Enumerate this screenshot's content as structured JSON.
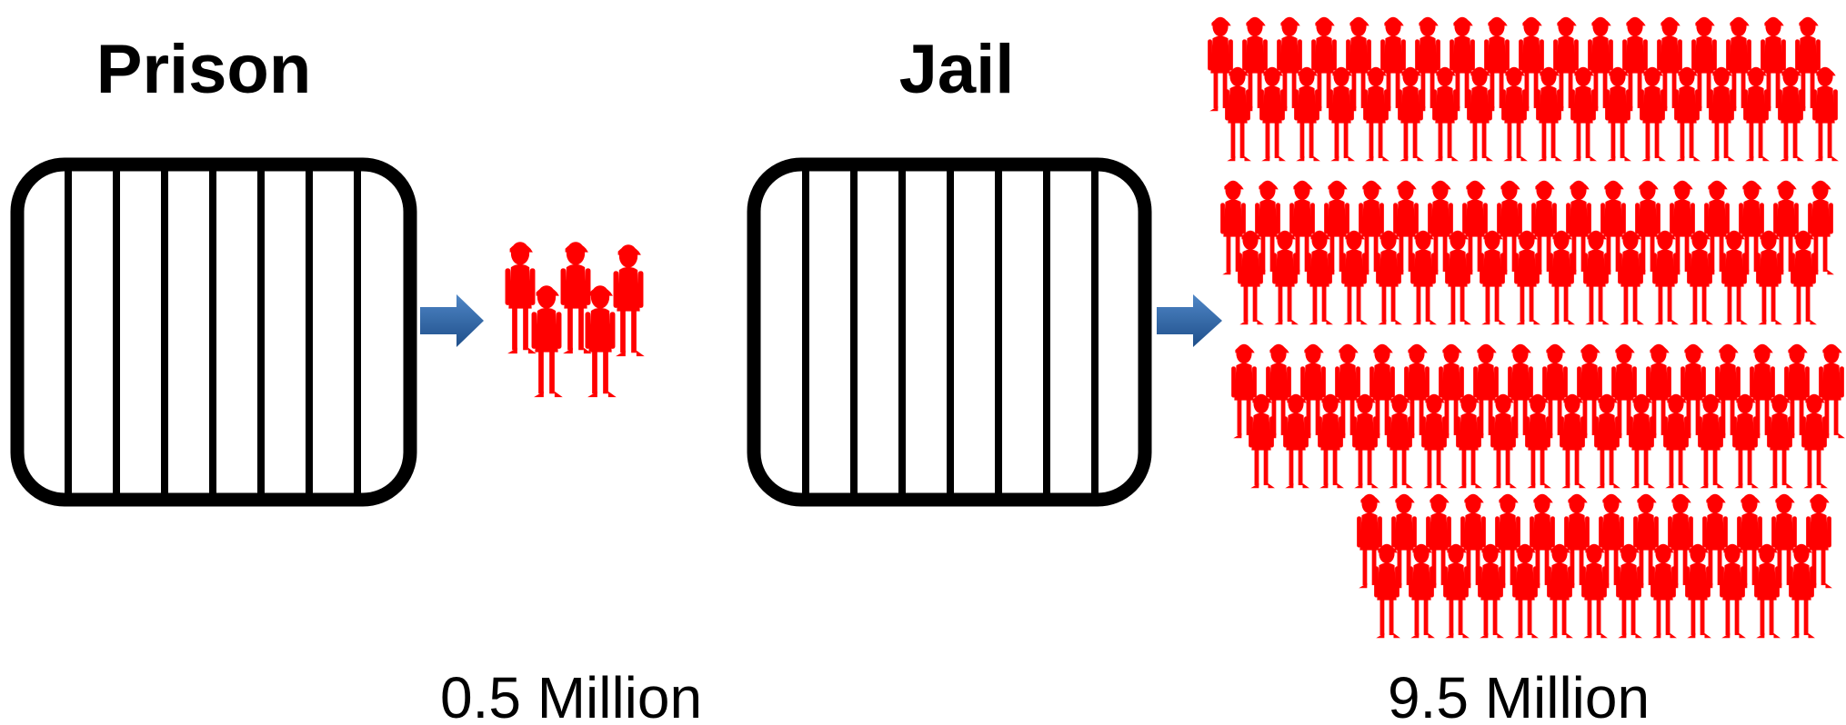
{
  "panels": [
    {
      "title": "Prison",
      "count_label": "0.5 Million"
    },
    {
      "title": "Jail",
      "count_label": "9.5 Million"
    }
  ]
}
